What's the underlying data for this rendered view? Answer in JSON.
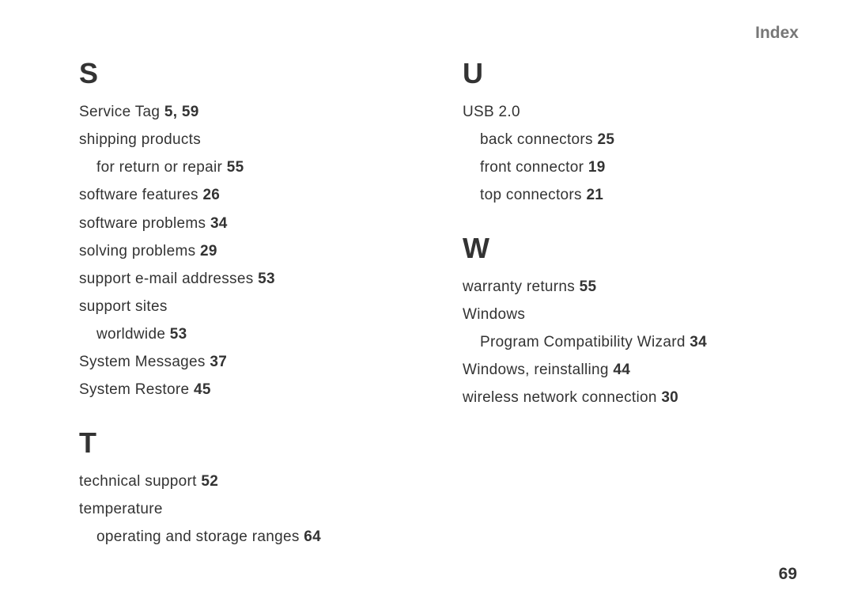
{
  "header": {
    "title": "Index"
  },
  "pageNumber": "69",
  "left": {
    "sections": [
      {
        "letter": "S",
        "entries": [
          {
            "text": "Service Tag",
            "pages": "5, 59"
          },
          {
            "text": "shipping products",
            "pages": ""
          },
          {
            "text": "for return or repair",
            "pages": "55",
            "indent": true
          },
          {
            "text": "software features",
            "pages": "26"
          },
          {
            "text": "software problems",
            "pages": "34"
          },
          {
            "text": "solving problems",
            "pages": "29"
          },
          {
            "text": "support e-mail addresses",
            "pages": "53"
          },
          {
            "text": "support sites",
            "pages": ""
          },
          {
            "text": "worldwide",
            "pages": "53",
            "indent": true
          },
          {
            "text": "System Messages",
            "pages": "37"
          },
          {
            "text": "System Restore",
            "pages": "45"
          }
        ]
      },
      {
        "letter": "T",
        "entries": [
          {
            "text": "technical support",
            "pages": "52"
          },
          {
            "text": "temperature",
            "pages": ""
          },
          {
            "text": "operating and storage ranges",
            "pages": "64",
            "indent": true
          }
        ]
      }
    ]
  },
  "right": {
    "sections": [
      {
        "letter": "U",
        "entries": [
          {
            "text": "USB 2.0",
            "pages": ""
          },
          {
            "text": "back connectors",
            "pages": "25",
            "indent": true
          },
          {
            "text": "front connector",
            "pages": "19",
            "indent": true
          },
          {
            "text": "top connectors",
            "pages": "21",
            "indent": true
          }
        ]
      },
      {
        "letter": "W",
        "entries": [
          {
            "text": "warranty returns",
            "pages": "55"
          },
          {
            "text": "Windows",
            "pages": ""
          },
          {
            "text": "Program Compatibility Wizard",
            "pages": "34",
            "indent": true
          },
          {
            "text": "Windows, reinstalling",
            "pages": "44"
          },
          {
            "text": "wireless network connection",
            "pages": "30"
          }
        ]
      }
    ]
  }
}
